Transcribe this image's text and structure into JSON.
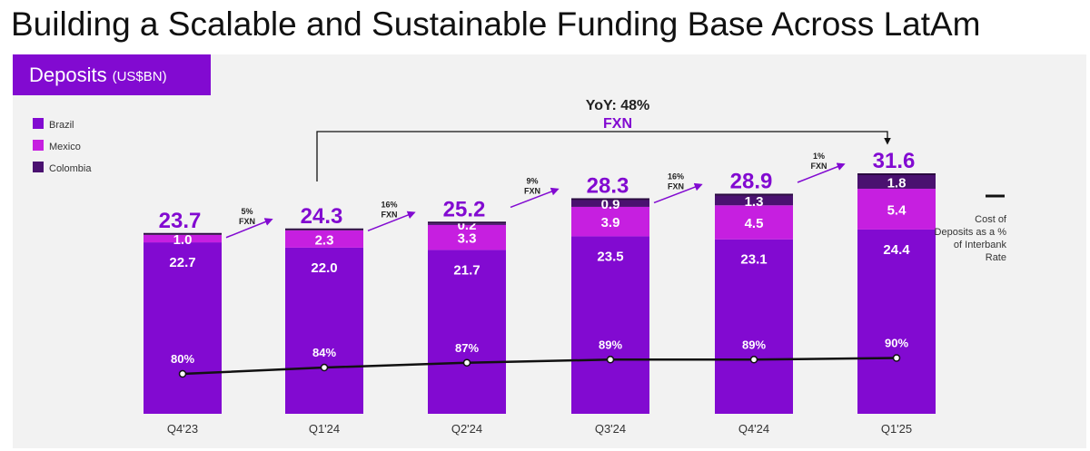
{
  "page_title": "Building a Scalable and Sustainable Funding Base Across LatAm",
  "panel": {
    "label": "Deposits",
    "unit": "(US$BN)"
  },
  "colors": {
    "Brazil": "#820ad1",
    "Mexico": "#c61fe0",
    "Colombia": "#4a1170",
    "line": "#111111"
  },
  "yoy": {
    "title": "YoY: 48%",
    "subtitle": "FXN"
  },
  "line_legend": [
    "Cost of",
    "Deposits as a %",
    "of Interbank",
    "Rate"
  ],
  "growth_arrows": [
    {
      "pct": "5%",
      "fxn": "FXN"
    },
    {
      "pct": "16%",
      "fxn": "FXN"
    },
    {
      "pct": "9%",
      "fxn": "FXN"
    },
    {
      "pct": "16%",
      "fxn": "FXN"
    },
    {
      "pct": "1%",
      "fxn": "FXN"
    }
  ],
  "chart_data": {
    "type": "bar",
    "stacked": true,
    "categories": [
      "Q4'23",
      "Q1'24",
      "Q2'24",
      "Q3'24",
      "Q4'24",
      "Q1'25"
    ],
    "series": [
      {
        "name": "Brazil",
        "values": [
          22.7,
          22.0,
          21.7,
          23.5,
          23.1,
          24.4
        ]
      },
      {
        "name": "Mexico",
        "values": [
          1.0,
          2.3,
          3.3,
          3.9,
          4.5,
          5.4
        ]
      },
      {
        "name": "Colombia",
        "values": [
          0.0,
          0.0,
          0.2,
          0.9,
          1.3,
          1.8
        ]
      }
    ],
    "segment_labels": {
      "Brazil": [
        "22.7",
        "22.0",
        "21.7",
        "23.5",
        "23.1",
        "24.4"
      ],
      "Mexico": [
        "1.0",
        "2.3",
        "3.3",
        "3.9",
        "4.5",
        "5.4"
      ],
      "Colombia": [
        "",
        "",
        "0.2",
        "0.9",
        "1.3",
        "1.8"
      ]
    },
    "totals": [
      "23.7",
      "24.3",
      "25.2",
      "28.3",
      "28.9",
      "31.6"
    ],
    "line": {
      "name": "Cost of Deposits as a % of Interbank Rate",
      "values": [
        80,
        84,
        87,
        89,
        89,
        90
      ],
      "labels": [
        "80%",
        "84%",
        "87%",
        "89%",
        "89%",
        "90%"
      ]
    },
    "ylim": [
      0,
      31.6
    ],
    "legend": {
      "position": "top-left",
      "entries": [
        "Brazil",
        "Mexico",
        "Colombia"
      ]
    },
    "grid": false
  }
}
